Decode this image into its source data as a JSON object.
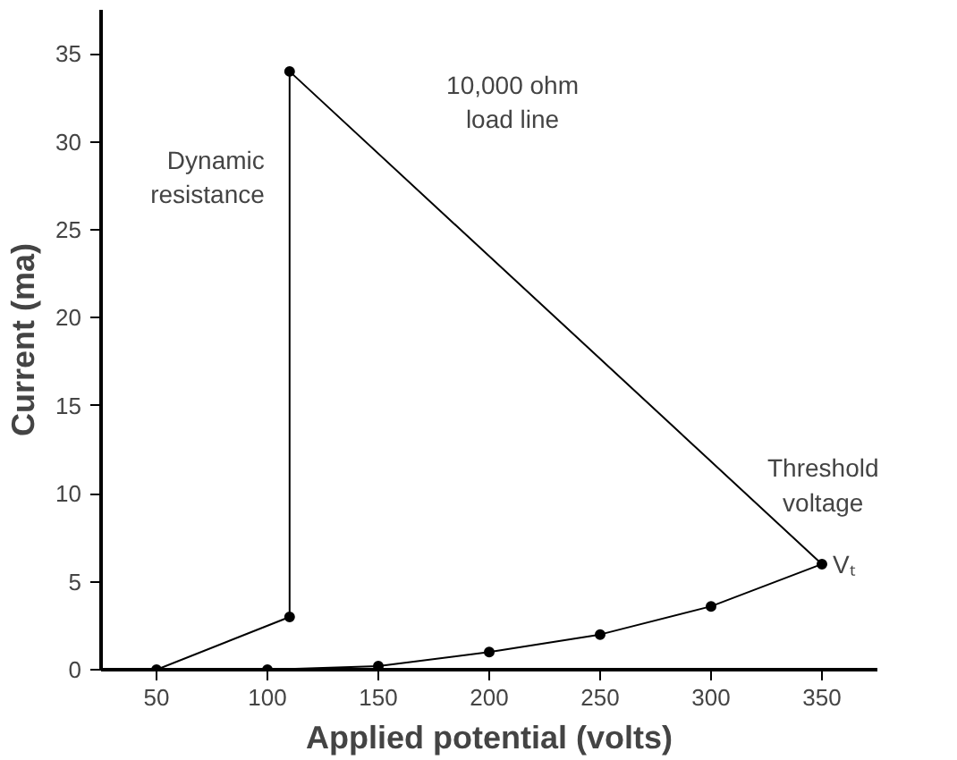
{
  "chart_data": {
    "type": "line",
    "xlabel": "Applied potential (volts)",
    "ylabel": "Current (ma)",
    "x": [
      100,
      150,
      200,
      250,
      300,
      350,
      110,
      110,
      50
    ],
    "series": [
      {
        "color": "#000000",
        "values": [
          0,
          0.2,
          1,
          2,
          3.6,
          6,
          34,
          3,
          0
        ]
      }
    ],
    "marker": "circle",
    "line_style": "solid",
    "grid": false,
    "xlim": [
      25,
      375
    ],
    "xticks": [
      50,
      100,
      150,
      200,
      250,
      300,
      350
    ],
    "ylim": [
      0,
      37.5
    ],
    "yticks": [
      0,
      5,
      10,
      15,
      20,
      25,
      30,
      35
    ],
    "annotations": [
      {
        "text": "Dynamic\nresistance",
        "x": 110,
        "y": 28
      },
      "10,000 ohm\nload line",
      "Threshold\nvoltage",
      {
        "text": "Vₜ",
        "x": 350,
        "y": 6
      }
    ]
  }
}
